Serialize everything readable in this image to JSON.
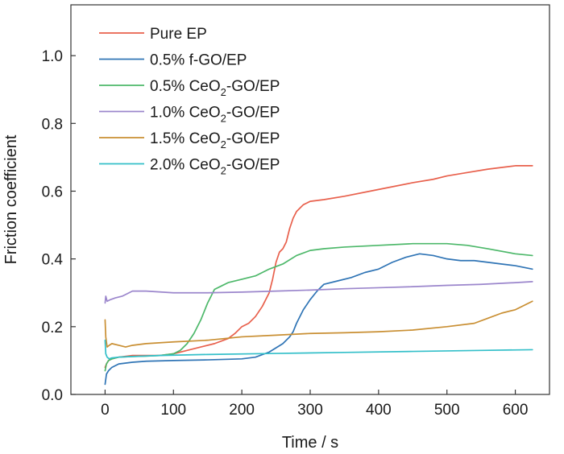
{
  "chart_data": {
    "type": "line",
    "xlabel": "Time / s",
    "ylabel": "Friction coefficient",
    "xlim": [
      -50,
      650
    ],
    "ylim": [
      0.0,
      1.15
    ],
    "x_ticks": [
      0,
      100,
      200,
      300,
      400,
      500,
      600
    ],
    "y_ticks": [
      0.0,
      0.2,
      0.4,
      0.6,
      0.8,
      1.0
    ],
    "x_tick_labels": [
      "0",
      "100",
      "200",
      "300",
      "400",
      "500",
      "600"
    ],
    "y_tick_labels": [
      "0.0",
      "0.2",
      "0.4",
      "0.6",
      "0.8",
      "1.0"
    ],
    "grid": false,
    "legend_position": "top-left",
    "series": [
      {
        "name": "Pure EP",
        "label_main": "Pure EP",
        "label_sub": "",
        "label_tail": "",
        "color": "#e8604c",
        "x": [
          0,
          2,
          5,
          10,
          20,
          40,
          60,
          80,
          100,
          120,
          140,
          160,
          180,
          190,
          200,
          210,
          220,
          230,
          240,
          245,
          250,
          255,
          260,
          265,
          270,
          275,
          280,
          285,
          290,
          295,
          300,
          320,
          350,
          400,
          450,
          480,
          500,
          530,
          560,
          600,
          625
        ],
        "y": [
          0.08,
          0.09,
          0.1,
          0.105,
          0.11,
          0.115,
          0.115,
          0.115,
          0.12,
          0.13,
          0.14,
          0.15,
          0.165,
          0.18,
          0.2,
          0.21,
          0.23,
          0.26,
          0.3,
          0.34,
          0.39,
          0.42,
          0.43,
          0.45,
          0.49,
          0.52,
          0.54,
          0.55,
          0.56,
          0.565,
          0.57,
          0.575,
          0.585,
          0.605,
          0.625,
          0.635,
          0.645,
          0.655,
          0.665,
          0.675,
          0.675
        ]
      },
      {
        "name": "0.5% f-GO/EP",
        "label_main": "0.5% f-GO/EP",
        "label_sub": "",
        "label_tail": "",
        "color": "#2f74b5",
        "x": [
          0,
          2,
          5,
          10,
          20,
          40,
          60,
          100,
          150,
          200,
          220,
          240,
          260,
          270,
          275,
          280,
          290,
          300,
          310,
          320,
          340,
          360,
          380,
          400,
          420,
          440,
          460,
          480,
          500,
          520,
          540,
          560,
          580,
          600,
          625
        ],
        "y": [
          0.03,
          0.06,
          0.07,
          0.08,
          0.09,
          0.095,
          0.098,
          0.1,
          0.102,
          0.105,
          0.11,
          0.125,
          0.15,
          0.17,
          0.185,
          0.21,
          0.25,
          0.28,
          0.305,
          0.325,
          0.335,
          0.345,
          0.36,
          0.37,
          0.39,
          0.405,
          0.415,
          0.41,
          0.4,
          0.395,
          0.395,
          0.39,
          0.385,
          0.38,
          0.37
        ]
      },
      {
        "name": "0.5% CeO2-GO/EP",
        "label_main": "0.5% CeO",
        "label_sub": "2",
        "label_tail": "-GO/EP",
        "color": "#4db86a",
        "x": [
          0,
          2,
          5,
          10,
          20,
          40,
          60,
          80,
          100,
          110,
          120,
          130,
          140,
          150,
          155,
          160,
          170,
          180,
          200,
          220,
          240,
          260,
          280,
          300,
          320,
          350,
          400,
          450,
          470,
          500,
          530,
          560,
          600,
          625
        ],
        "y": [
          0.07,
          0.09,
          0.1,
          0.105,
          0.11,
          0.112,
          0.113,
          0.115,
          0.12,
          0.13,
          0.15,
          0.18,
          0.22,
          0.27,
          0.29,
          0.31,
          0.32,
          0.33,
          0.34,
          0.35,
          0.37,
          0.385,
          0.41,
          0.425,
          0.43,
          0.435,
          0.44,
          0.445,
          0.445,
          0.445,
          0.44,
          0.43,
          0.415,
          0.41
        ]
      },
      {
        "name": "1.0% CeO2-GO/EP",
        "label_main": "1.0% CeO",
        "label_sub": "2",
        "label_tail": "-GO/EP",
        "color": "#9b86cc",
        "x": [
          0,
          1,
          3,
          8,
          15,
          25,
          40,
          60,
          100,
          150,
          200,
          250,
          300,
          350,
          400,
          450,
          500,
          550,
          600,
          625
        ],
        "y": [
          0.27,
          0.29,
          0.275,
          0.28,
          0.285,
          0.29,
          0.305,
          0.305,
          0.3,
          0.3,
          0.302,
          0.305,
          0.308,
          0.312,
          0.315,
          0.318,
          0.322,
          0.325,
          0.33,
          0.333
        ]
      },
      {
        "name": "1.5% CeO2-GO/EP",
        "label_main": "1.5% CeO",
        "label_sub": "2",
        "label_tail": "-GO/EP",
        "color": "#c98f33",
        "x": [
          0,
          1,
          3,
          6,
          10,
          20,
          30,
          40,
          60,
          100,
          150,
          200,
          250,
          300,
          350,
          400,
          450,
          500,
          540,
          560,
          580,
          600,
          625
        ],
        "y": [
          0.22,
          0.17,
          0.14,
          0.145,
          0.15,
          0.145,
          0.14,
          0.145,
          0.15,
          0.155,
          0.16,
          0.17,
          0.175,
          0.18,
          0.182,
          0.185,
          0.19,
          0.2,
          0.21,
          0.225,
          0.24,
          0.25,
          0.275
        ]
      },
      {
        "name": "2.0% CeO2-GO/EP",
        "label_main": "2.0% CeO",
        "label_sub": "2",
        "label_tail": "-GO/EP",
        "color": "#33bfc9",
        "x": [
          0,
          1,
          3,
          6,
          10,
          20,
          40,
          80,
          150,
          250,
          350,
          450,
          550,
          625
        ],
        "y": [
          0.16,
          0.12,
          0.11,
          0.105,
          0.108,
          0.11,
          0.112,
          0.115,
          0.118,
          0.121,
          0.124,
          0.127,
          0.13,
          0.132
        ]
      }
    ]
  }
}
